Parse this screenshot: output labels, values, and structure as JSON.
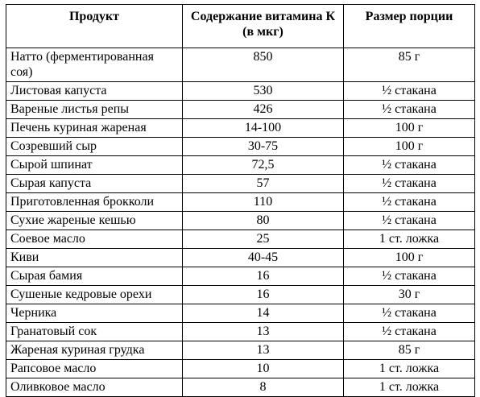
{
  "table": {
    "headers": {
      "product": "Продукт",
      "content": "Содержание витамина К (в мкг)",
      "serving": "Размер порции"
    },
    "rows": [
      {
        "product": "Натто (ферментированная соя)",
        "content": "850",
        "serving": "85 г"
      },
      {
        "product": "Листовая капуста",
        "content": "530",
        "serving": "½ стакана"
      },
      {
        "product": "Вареные листья репы",
        "content": "426",
        "serving": "½ стакана"
      },
      {
        "product": "Печень куриная жареная",
        "content": "14-100",
        "serving": "100 г"
      },
      {
        "product": "Созревший сыр",
        "content": "30-75",
        "serving": "100 г"
      },
      {
        "product": "Сырой шпинат",
        "content": "72,5",
        "serving": "½ стакана"
      },
      {
        "product": "Сырая капуста",
        "content": "57",
        "serving": "½ стакана"
      },
      {
        "product": "Приготовленная брокколи",
        "content": "110",
        "serving": "½ стакана"
      },
      {
        "product": "Сухие жареные кешью",
        "content": "80",
        "serving": "½ стакана"
      },
      {
        "product": "Соевое масло",
        "content": "25",
        "serving": "1 ст. ложка"
      },
      {
        "product": "Киви",
        "content": "40-45",
        "serving": "100 г"
      },
      {
        "product": "Сырая бамия",
        "content": "16",
        "serving": "½ стакана"
      },
      {
        "product": "Сушеные кедровые орехи",
        "content": "16",
        "serving": "30 г"
      },
      {
        "product": "Черника",
        "content": "14",
        "serving": "½ стакана"
      },
      {
        "product": "Гранатовый сок",
        "content": "13",
        "serving": "½ стакана"
      },
      {
        "product": "Жареная куриная грудка",
        "content": "13",
        "serving": "85 г"
      },
      {
        "product": "Рапсовое масло",
        "content": "10",
        "serving": "1 ст. ложка"
      },
      {
        "product": "Оливковое масло",
        "content": "8",
        "serving": "1 ст. ложка"
      }
    ]
  }
}
